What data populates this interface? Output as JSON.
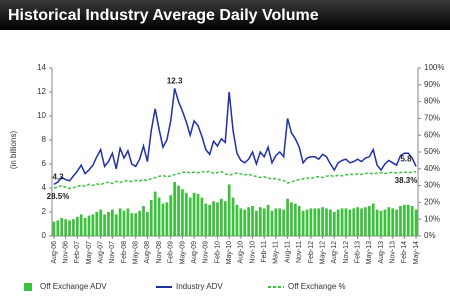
{
  "chart_data": {
    "type": "combo",
    "title": "Historical Industry Average Daily Volume",
    "y_label": "(in billions)",
    "categories": [
      "Aug-06",
      null,
      null,
      "Nov-06",
      null,
      null,
      "Feb-07",
      null,
      null,
      "May-07",
      null,
      null,
      "Aug-07",
      null,
      null,
      "Nov-07",
      null,
      null,
      "Feb-08",
      null,
      null,
      "May-08",
      null,
      null,
      "Aug-08",
      null,
      null,
      "Nov-08",
      null,
      null,
      "Feb-09",
      null,
      null,
      "May-09",
      null,
      null,
      "Aug-09",
      null,
      null,
      "Nov-09",
      null,
      null,
      "Feb-10",
      null,
      null,
      "May-10",
      null,
      null,
      "Aug-10",
      null,
      null,
      "Nov-10",
      null,
      null,
      "Feb-11",
      null,
      null,
      "May-11",
      null,
      null,
      "Aug-11",
      null,
      null,
      "Nov-11",
      null,
      null,
      "Feb-12",
      null,
      null,
      "May-12",
      null,
      null,
      "Aug-12",
      null,
      null,
      "Nov-12",
      null,
      null,
      "Feb-13",
      null,
      null,
      "May-13",
      null,
      null,
      "Aug-13",
      null,
      null,
      "Nov-13",
      null,
      null,
      "Feb-14",
      null,
      null,
      "May-14"
    ],
    "ylim": [
      0,
      14
    ],
    "yticks": [
      0,
      2,
      4,
      6,
      8,
      10,
      12,
      14
    ],
    "y2lim": [
      0,
      100
    ],
    "y2ticks": [
      {
        "value": 0,
        "label": "0%"
      },
      {
        "value": 10,
        "label": "10%"
      },
      {
        "value": 20,
        "label": "20%"
      },
      {
        "value": 30,
        "label": "30%"
      },
      {
        "value": 40,
        "label": "40%"
      },
      {
        "value": 50,
        "label": "50%"
      },
      {
        "value": 60,
        "label": "60%"
      },
      {
        "value": 70,
        "label": "70%"
      },
      {
        "value": 80,
        "label": "80%"
      },
      {
        "value": 90,
        "label": "90%"
      },
      {
        "value": 100,
        "label": "100%"
      }
    ],
    "legend": "bottom",
    "series": [
      {
        "name": "Off Exchange ADV",
        "type": "bar",
        "color": "#3cc13c",
        "values": [
          1.2,
          1.3,
          1.5,
          1.4,
          1.3,
          1.4,
          1.6,
          1.8,
          1.5,
          1.7,
          1.8,
          2.0,
          2.2,
          1.8,
          2.0,
          2.2,
          1.8,
          2.3,
          2.1,
          2.3,
          1.9,
          1.9,
          2.1,
          2.5,
          2.0,
          3.0,
          3.7,
          3.2,
          2.7,
          2.8,
          3.4,
          4.5,
          4.2,
          3.9,
          3.6,
          3.2,
          3.6,
          3.5,
          3.2,
          2.7,
          2.6,
          2.9,
          2.8,
          3.1,
          2.9,
          4.3,
          3.2,
          2.6,
          2.3,
          2.2,
          2.4,
          2.5,
          2.1,
          2.4,
          2.3,
          2.6,
          2.1,
          2.3,
          2.3,
          2.2,
          3.1,
          2.8,
          2.7,
          2.5,
          2.1,
          2.2,
          2.3,
          2.3,
          2.3,
          2.4,
          2.3,
          2.2,
          2.0,
          2.2,
          2.3,
          2.3,
          2.2,
          2.3,
          2.4,
          2.3,
          2.4,
          2.5,
          2.7,
          2.2,
          2.1,
          2.2,
          2.4,
          2.3,
          2.2,
          2.5,
          2.6,
          2.6,
          2.5,
          2.2
        ]
      },
      {
        "name": "Industry ADV",
        "type": "line",
        "color": "#1f2fa8",
        "values": [
          4.3,
          4.5,
          4.9,
          4.7,
          4.6,
          5.0,
          5.4,
          5.9,
          5.2,
          5.5,
          5.9,
          6.6,
          7.2,
          5.8,
          6.2,
          6.9,
          5.6,
          7.3,
          6.5,
          7.1,
          6.0,
          5.8,
          6.4,
          7.5,
          6.2,
          8.8,
          10.6,
          8.9,
          7.4,
          8.0,
          9.6,
          12.3,
          11.2,
          10.4,
          9.5,
          8.4,
          9.6,
          9.2,
          8.3,
          7.2,
          6.8,
          7.9,
          7.5,
          8.1,
          7.8,
          12.0,
          8.8,
          6.9,
          6.3,
          6.1,
          6.4,
          7.0,
          6.0,
          7.0,
          6.6,
          7.4,
          6.1,
          6.7,
          7.0,
          6.6,
          9.8,
          8.6,
          8.1,
          7.4,
          6.1,
          6.5,
          6.6,
          6.6,
          6.4,
          6.8,
          6.6,
          6.0,
          5.5,
          6.1,
          6.3,
          6.4,
          6.1,
          6.2,
          6.4,
          6.2,
          6.5,
          6.6,
          7.2,
          5.9,
          5.5,
          6.0,
          6.3,
          6.1,
          5.9,
          6.7,
          6.9,
          6.9,
          6.5,
          5.8
        ],
        "value_labels": [
          "4.3",
          null,
          null,
          null,
          null,
          null,
          null,
          null,
          null,
          null,
          null,
          null,
          null,
          null,
          null,
          null,
          null,
          null,
          null,
          null,
          null,
          null,
          null,
          null,
          null,
          null,
          null,
          null,
          null,
          null,
          null,
          "12.3",
          null,
          null,
          null,
          null,
          null,
          null,
          null,
          null,
          null,
          null,
          null,
          null,
          null,
          null,
          null,
          null,
          null,
          null,
          null,
          null,
          null,
          null,
          null,
          null,
          null,
          null,
          null,
          null,
          null,
          null,
          null,
          null,
          null,
          null,
          null,
          null,
          null,
          null,
          null,
          null,
          null,
          null,
          null,
          null,
          null,
          null,
          null,
          null,
          null,
          null,
          null,
          null,
          null,
          null,
          null,
          null,
          null,
          null,
          null,
          null,
          null,
          "5.8"
        ]
      },
      {
        "name": "Off Exchange %",
        "type": "line",
        "dashed": true,
        "axis": "y2",
        "color": "#3cc13c",
        "values": [
          28.5,
          29.2,
          30.1,
          29.0,
          28.3,
          28.8,
          29.5,
          30.2,
          29.6,
          30.8,
          30.1,
          31.0,
          30.5,
          31.6,
          32.0,
          31.2,
          32.5,
          31.8,
          32.6,
          33.0,
          32.4,
          33.1,
          32.8,
          33.5,
          33.0,
          34.2,
          34.8,
          35.5,
          36.0,
          35.2,
          35.8,
          36.5,
          37.1,
          37.8,
          38.2,
          37.5,
          38.0,
          37.6,
          38.4,
          37.9,
          38.6,
          37.2,
          37.8,
          38.3,
          37.0,
          36.2,
          36.8,
          37.5,
          37.0,
          36.4,
          36.9,
          35.8,
          35.5,
          34.8,
          35.2,
          34.5,
          33.8,
          34.2,
          33.5,
          33.0,
          31.5,
          32.2,
          33.0,
          33.6,
          34.0,
          34.5,
          34.2,
          35.0,
          35.3,
          34.8,
          35.6,
          36.0,
          35.5,
          36.2,
          35.8,
          36.4,
          36.8,
          36.5,
          37.0,
          36.6,
          37.2,
          37.5,
          36.9,
          37.4,
          37.8,
          37.2,
          37.6,
          38.0,
          37.5,
          37.8,
          38.1,
          37.6,
          38.0,
          38.3
        ],
        "value_labels": [
          "28.5%",
          null,
          null,
          null,
          null,
          null,
          null,
          null,
          null,
          null,
          null,
          null,
          null,
          null,
          null,
          null,
          null,
          null,
          null,
          null,
          null,
          null,
          null,
          null,
          null,
          null,
          null,
          null,
          null,
          null,
          null,
          null,
          null,
          null,
          null,
          null,
          null,
          null,
          null,
          null,
          null,
          null,
          null,
          null,
          null,
          null,
          null,
          null,
          null,
          null,
          null,
          null,
          null,
          null,
          null,
          null,
          null,
          null,
          null,
          null,
          null,
          null,
          null,
          null,
          null,
          null,
          null,
          null,
          null,
          null,
          null,
          null,
          null,
          null,
          null,
          null,
          null,
          null,
          null,
          null,
          null,
          null,
          null,
          null,
          null,
          null,
          null,
          null,
          null,
          null,
          null,
          null,
          null,
          "38.3%"
        ]
      }
    ]
  }
}
